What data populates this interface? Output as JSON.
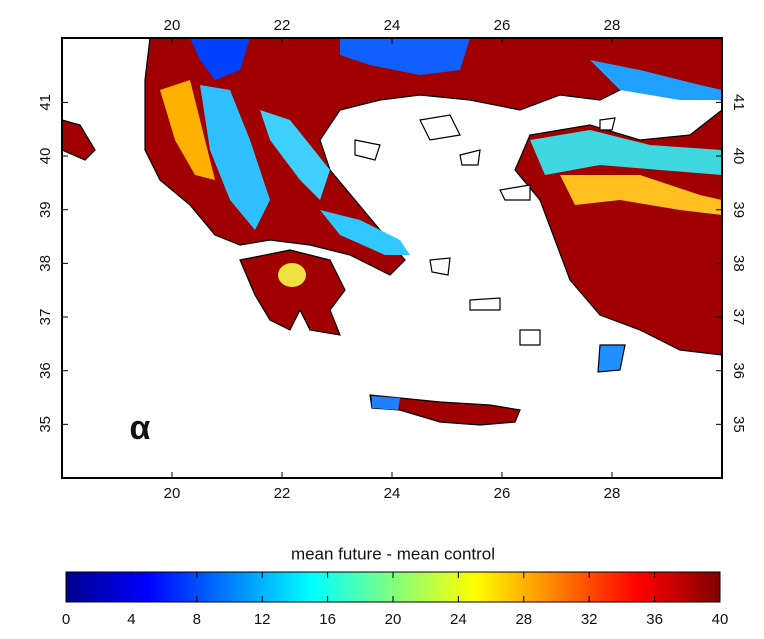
{
  "map": {
    "xlim": [
      18,
      30
    ],
    "ylim": [
      34,
      42.2
    ],
    "xticks": [
      20,
      22,
      24,
      26,
      28
    ],
    "yticks": [
      35,
      36,
      37,
      38,
      39,
      40,
      41
    ],
    "panel_label": "α"
  },
  "colorbar": {
    "title": "mean future - mean control",
    "range": [
      0,
      40
    ],
    "ticks": [
      0,
      4,
      8,
      12,
      16,
      20,
      24,
      28,
      32,
      36,
      40
    ]
  }
}
